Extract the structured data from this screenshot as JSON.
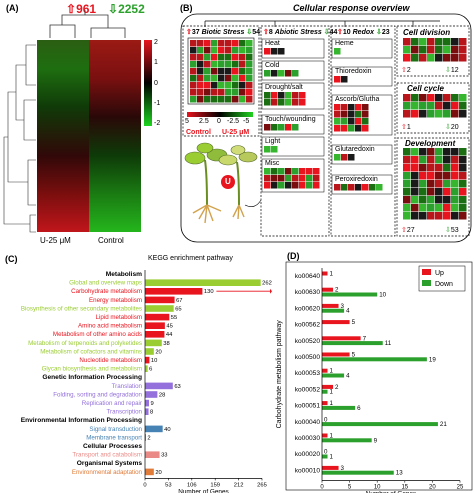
{
  "panelA": {
    "label": "(A)",
    "up_count": "961",
    "down_count": "2252",
    "col_labels": [
      "U-25 μM",
      "Control"
    ],
    "colorbar_ticks": [
      "2",
      "1",
      "0",
      "-1",
      "-2"
    ]
  },
  "panelB": {
    "label": "(B)",
    "title": "Cellular response overview",
    "biotic": {
      "title": "Biotic Stress",
      "up": "37",
      "down": "54"
    },
    "abiotic": {
      "title": "Abiotic Stress",
      "up": "8",
      "down": "44",
      "items": [
        "Heat",
        "Cold",
        "Drought/salt",
        "Touch/wounding",
        "Light",
        "Misc"
      ]
    },
    "redox": {
      "title": "Redox",
      "up": "10",
      "down": "23",
      "items": [
        "Heme",
        "Thioredoxin",
        "Ascorb/Glutha",
        "Glutaredoxin",
        "Peroxiredoxin"
      ]
    },
    "cell_division": {
      "title": "Cell division",
      "up": "2",
      "down": "12"
    },
    "cell_cycle": {
      "title": "Cell cycle",
      "up": "1",
      "down": "20"
    },
    "development": {
      "title": "Development",
      "up": "27",
      "down": "53"
    },
    "scale_ticks": [
      "5",
      "2.5",
      "0",
      "-2.5",
      "-5"
    ],
    "plant_labels": [
      "Control",
      "U-25 μM"
    ],
    "uranium_symbol": "U"
  },
  "panelC": {
    "label": "(C)",
    "chart_data": {
      "type": "bar",
      "title": "KEGG enrichment pathway",
      "xlabel": "Number of Genes",
      "xticks": [
        "0",
        "53",
        "106",
        "159",
        "212",
        "265"
      ],
      "xlim": [
        0,
        265
      ],
      "groups": [
        {
          "name": "Metabolism",
          "color": "#000000",
          "items": [
            {
              "label": "Global and overview maps",
              "value": 262,
              "color": "#9ACD32"
            },
            {
              "label": "Carbohydrate metabolism",
              "value": 130,
              "color": "#E8141E"
            },
            {
              "label": "Energy metabolism",
              "value": 67,
              "color": "#E8141E"
            },
            {
              "label": "Biosynthesis of other secondary metabolites",
              "value": 65,
              "color": "#9ACD32"
            },
            {
              "label": "Lipid metabolism",
              "value": 55,
              "color": "#E8141E"
            },
            {
              "label": "Amino acid metabolism",
              "value": 45,
              "color": "#E8141E"
            },
            {
              "label": "Metabolism of other amino acids",
              "value": 44,
              "color": "#E8141E"
            },
            {
              "label": "Metabolism of terpenoids and polyketides",
              "value": 38,
              "color": "#9ACD32"
            },
            {
              "label": "Metabolism of cofactors and vitamins",
              "value": 20,
              "color": "#9ACD32"
            },
            {
              "label": "Nucleotide metabolism",
              "value": 10,
              "color": "#E8141E"
            },
            {
              "label": "Glycan biosynthesis and metabolism",
              "value": 6,
              "color": "#9ACD32"
            }
          ]
        },
        {
          "name": "Genetic Information Processing",
          "color": "#000000",
          "items": [
            {
              "label": "Translation",
              "value": 63,
              "color": "#9370DB"
            },
            {
              "label": "Folding, sorting and degradation",
              "value": 28,
              "color": "#9370DB"
            },
            {
              "label": "Replication and repair",
              "value": 9,
              "color": "#9370DB"
            },
            {
              "label": "Transcription",
              "value": 8,
              "color": "#9370DB"
            }
          ]
        },
        {
          "name": "Environmental Information Processing",
          "color": "#000000",
          "items": [
            {
              "label": "Signal transduction",
              "value": 40,
              "color": "#4682B4"
            },
            {
              "label": "Membrane transport",
              "value": 2,
              "color": "#4682B4"
            }
          ]
        },
        {
          "name": "Cellular Processes",
          "color": "#000000",
          "items": [
            {
              "label": "Transport and catabolism",
              "value": 33,
              "color": "#E98A86"
            }
          ]
        },
        {
          "name": "Organismal Systems",
          "color": "#000000",
          "items": [
            {
              "label": "Environmental adaptation",
              "value": 20,
              "color": "#E07B39"
            }
          ]
        }
      ]
    }
  },
  "panelD": {
    "label": "(D)",
    "chart_data": {
      "type": "bar",
      "orientation": "horizontal",
      "ylabel": "Carbohydrate metabolism pathway",
      "xlabel": "Number of Genes",
      "xticks": [
        "0",
        "5",
        "10",
        "15",
        "20",
        "25"
      ],
      "xlim": [
        0,
        25
      ],
      "categories": [
        "ko00640",
        "ko00630",
        "ko00620",
        "ko00562",
        "ko00520",
        "ko00500",
        "ko00053",
        "ko00052",
        "ko00051",
        "ko00040",
        "ko00030",
        "ko00020",
        "ko00010"
      ],
      "series": [
        {
          "name": "Up",
          "color": "#E8141E",
          "values": [
            1,
            2,
            3,
            5,
            7,
            5,
            1,
            2,
            1,
            0,
            1,
            0,
            3
          ]
        },
        {
          "name": "Down",
          "color": "#2CA02C",
          "values": [
            null,
            10,
            4,
            null,
            11,
            19,
            4,
            1,
            6,
            21,
            9,
            1,
            13
          ]
        }
      ]
    }
  }
}
